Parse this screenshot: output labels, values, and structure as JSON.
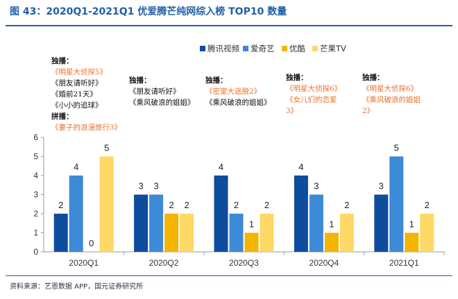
{
  "figure_title": "图 43：2020Q1-2021Q1 优爱腾芒纯网综入榜 TOP10 数量",
  "source": "资料来源：艺恩数据 APP，国元证券研究所",
  "colors": {
    "腾讯视频": "#0e4c9e",
    "爱奇艺": "#3d8ad6",
    "优酷": "#f4b400",
    "芒果TV": "#ffd966",
    "highlight_text": "#e8702a",
    "axis": "#999999"
  },
  "chart_data": {
    "type": "bar",
    "title": "",
    "xlabel": "",
    "ylabel": "",
    "categories": [
      "2020Q1",
      "2020Q2",
      "2020Q3",
      "2020Q4",
      "2021Q1"
    ],
    "series": [
      {
        "name": "腾讯视频",
        "values": [
          2,
          3,
          4,
          4,
          3
        ]
      },
      {
        "name": "爱奇艺",
        "values": [
          4,
          3,
          2,
          3,
          5
        ]
      },
      {
        "name": "优酷",
        "values": [
          0,
          2,
          1,
          1,
          1
        ]
      },
      {
        "name": "芒果TV",
        "values": [
          5,
          2,
          2,
          2,
          2
        ]
      }
    ],
    "ylim": [
      0,
      6
    ],
    "yticks": [
      0,
      1,
      2,
      3,
      4,
      5,
      6
    ],
    "grid": false,
    "legend": "top-right",
    "data_labels": true
  },
  "annotations": [
    {
      "groups": [
        {
          "label": "独播：",
          "items": [
            {
              "text": "《明星大侦探5》",
              "highlight": true
            },
            {
              "text": "《朋友请听好》",
              "highlight": false
            },
            {
              "text": "《婚前21天》",
              "highlight": false
            },
            {
              "text": "《小小的追球》",
              "highlight": false
            }
          ]
        },
        {
          "label": "拼播：",
          "items": [
            {
              "text": "《妻子的浪漫旅行3》",
              "highlight": true
            }
          ]
        }
      ]
    },
    {
      "groups": [
        {
          "label": "独播：",
          "items": [
            {
              "text": "《朋友请听好》",
              "highlight": false
            },
            {
              "text": "《乘风破浪的姐姐》",
              "highlight": false
            }
          ]
        }
      ]
    },
    {
      "groups": [
        {
          "label": "独播：",
          "items": [
            {
              "text": "《密室大逃脱2》",
              "highlight": true
            },
            {
              "text": "《乘风破浪的姐姐》",
              "highlight": false
            }
          ]
        }
      ]
    },
    {
      "groups": [
        {
          "label": "独播：",
          "items": [
            {
              "text": "《明星大侦探6》",
              "highlight": true
            },
            {
              "text": "《女儿们的恋爱",
              "highlight": true
            },
            {
              "text": "3》",
              "highlight": true
            }
          ]
        }
      ]
    },
    {
      "groups": [
        {
          "label": "独播：",
          "items": [
            {
              "text": "《明星大侦探6》",
              "highlight": true
            },
            {
              "text": "《乘风破浪的姐姐",
              "highlight": true
            },
            {
              "text": "2》",
              "highlight": true
            }
          ]
        }
      ]
    }
  ]
}
